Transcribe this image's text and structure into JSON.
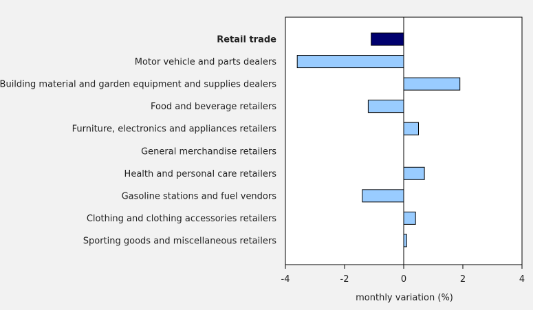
{
  "chart_data": {
    "type": "bar",
    "orientation": "horizontal",
    "title": "",
    "xlabel": "monthly variation (%)",
    "ylabel": "",
    "xlim": [
      -4,
      4
    ],
    "xticks": [
      "-4",
      "-2",
      "0",
      "2",
      "4"
    ],
    "grid": false,
    "categories": [
      "Retail trade",
      "Motor vehicle and parts dealers",
      "Building material and garden equipment and supplies dealers",
      "Food and beverage retailers",
      "Furniture, electronics and appliances retailers",
      "General merchandise retailers",
      "Health and personal care retailers",
      "Gasoline stations and fuel vendors",
      "Clothing and clothing accessories retailers",
      "Sporting goods and miscellaneous retailers"
    ],
    "values": [
      -1.1,
      -3.6,
      1.9,
      -1.2,
      0.5,
      0.0,
      0.7,
      -1.4,
      0.4,
      0.1
    ],
    "highlight_index": 0,
    "colors": {
      "highlight": "#00006e",
      "bar": "#99ccff",
      "bar_stroke": "#000000",
      "background": "#f2f2f2",
      "plot_background": "#ffffff"
    }
  }
}
